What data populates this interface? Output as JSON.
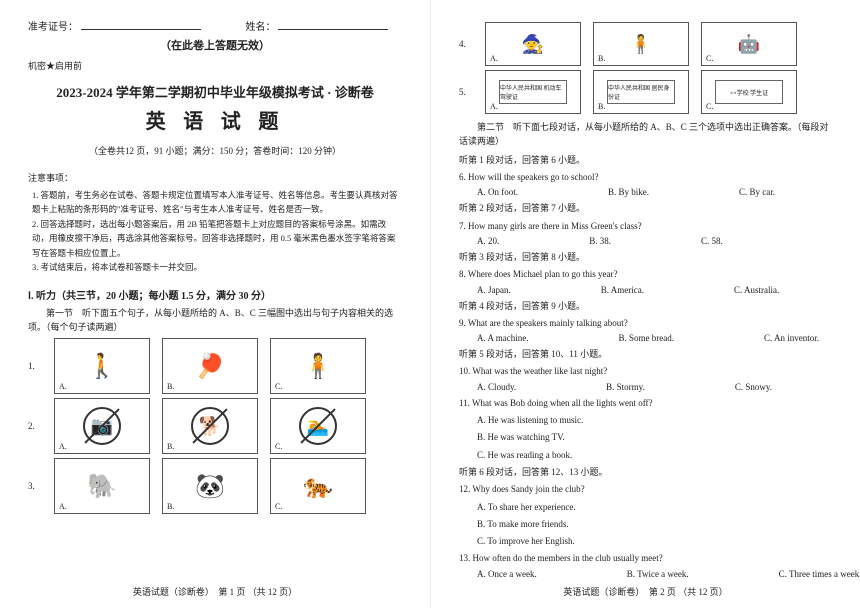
{
  "page_bg": "#ffffff",
  "body_bg": "#f5f5f5",
  "text_color": "#222222",
  "border_color": "#555555",
  "font_family_body": "SimSun",
  "font_family_title": "SimHei",
  "header": {
    "exam_id_label": "准考证号：",
    "name_label": "姓名：",
    "warning": "（在此卷上答题无效）",
    "secret": "机密★启用前"
  },
  "title": {
    "main": "2023-2024 学年第二学期初中毕业年级模拟考试 · 诊断卷",
    "subject": "英 语 试 题",
    "meta": "（全卷共12 页，91 小题；满分：150 分；答卷时间：120 分钟）"
  },
  "notice": {
    "heading": "注意事项：",
    "items": [
      "答题前，考生务必在试卷、答题卡规定位置填写本人准考证号、姓名等信息。考生要认真核对答题卡上粘贴的条形码的\"准考证号、姓名\"与考生本人准考证号、姓名是否一致。",
      "回答选择题时，选出每小题答案后，用 2B 铅笔把答题卡上对应题目的答案标号涂黑。如需改动，用橡皮擦干净后，再选涂其他答案标号。回答非选择题时，用 0.5 毫米黑色墨水签字笔将答案写在答题卡相应位置上。",
      "考试结束后，将本试卷和答题卡一并交回。"
    ]
  },
  "section1": {
    "title": "Ⅰ. 听力（共三节，20 小题；每小题 1.5 分，满分 30 分）",
    "part1": "第一节　听下面五个句子，从每小题所给的 A、B、C 三幅图中选出与句子内容相关的选项。（每个句子读两遍）"
  },
  "picture_rows": [
    {
      "n": "1.",
      "labels": [
        "A.",
        "B.",
        "C."
      ],
      "glyphs": [
        "🚶",
        "🏓",
        "🧍"
      ]
    },
    {
      "n": "2.",
      "labels": [
        "A.",
        "B.",
        "C."
      ],
      "glyphs": [
        "📷",
        "🐕",
        "🏊"
      ],
      "prohibit": true
    },
    {
      "n": "3.",
      "labels": [
        "A.",
        "B.",
        "C."
      ],
      "glyphs": [
        "🐘",
        "🐼",
        "🐅"
      ]
    }
  ],
  "footer1": "英语试题（诊断卷）　第 1 页 （共 12 页）",
  "page2_rows": [
    {
      "n": "4.",
      "labels": [
        "A.",
        "B.",
        "C."
      ],
      "glyphs": [
        "🧙",
        "🧍",
        "🤖"
      ]
    },
    {
      "n": "5.",
      "labels": [
        "A.",
        "B.",
        "C."
      ],
      "cards": [
        "中华人民共和国\n机动车驾驶证",
        "中华人民共和国\n居民身份证",
        "××学校\n学生证"
      ]
    }
  ],
  "part2": {
    "intro": "第二节　听下面七段对话，从每小题所给的 A、B、C 三个选项中选出正确答案。（每段对话读两遍）",
    "dialogs": [
      {
        "lead": "听第 1 段对话，回答第 6 小题。",
        "qs": [
          {
            "n": "6.",
            "q": "How will the speakers go to school?",
            "opts": [
              "A.  On foot.",
              "B.  By bike.",
              "C.  By car."
            ]
          }
        ]
      },
      {
        "lead": "听第 2 段对话，回答第 7 小题。",
        "qs": [
          {
            "n": "7.",
            "q": "How many girls are there in Miss Green's class?",
            "opts": [
              "A.  20.",
              "B.  38.",
              "C.  58."
            ]
          }
        ]
      },
      {
        "lead": "听第 3 段对话，回答第 8 小题。",
        "qs": [
          {
            "n": "8.",
            "q": "Where does Michael plan to go this year?",
            "opts": [
              "A.  Japan.",
              "B.  America.",
              "C.  Australia."
            ]
          }
        ]
      },
      {
        "lead": "听第 4 段对话，回答第 9 小题。",
        "qs": [
          {
            "n": "9.",
            "q": "What are the speakers mainly talking about?",
            "opts": [
              "A.  A machine.",
              "B.  Some bread.",
              "C.  An inventor."
            ]
          }
        ]
      },
      {
        "lead": "听第 5 段对话，回答第 10、11 小题。",
        "qs": [
          {
            "n": "10.",
            "q": "What was the weather like last night?",
            "opts": [
              "A.  Cloudy.",
              "B.  Stormy.",
              "C.  Snowy."
            ]
          },
          {
            "n": "11.",
            "q": "What was Bob doing when all the lights went off?",
            "opts": [
              "A.  He was listening to music.",
              "B.  He was watching TV.",
              "C.  He was reading a book."
            ],
            "vertical": true
          }
        ]
      },
      {
        "lead": "听第 6 段对话，回答第 12、13 小题。",
        "qs": [
          {
            "n": "12.",
            "q": "Why does Sandy join the club?",
            "opts": [
              "A.  To share her experience.",
              "B.  To make more friends.",
              "C.  To improve her English."
            ],
            "vertical": true
          },
          {
            "n": "13.",
            "q": "How often do the members in the club usually meet?",
            "opts": [
              "A.  Once a week.",
              "B.  Twice a week.",
              "C.  Three times a week."
            ]
          }
        ]
      }
    ]
  },
  "footer2": "英语试题（诊断卷）　第 2 页 （共 12 页）"
}
